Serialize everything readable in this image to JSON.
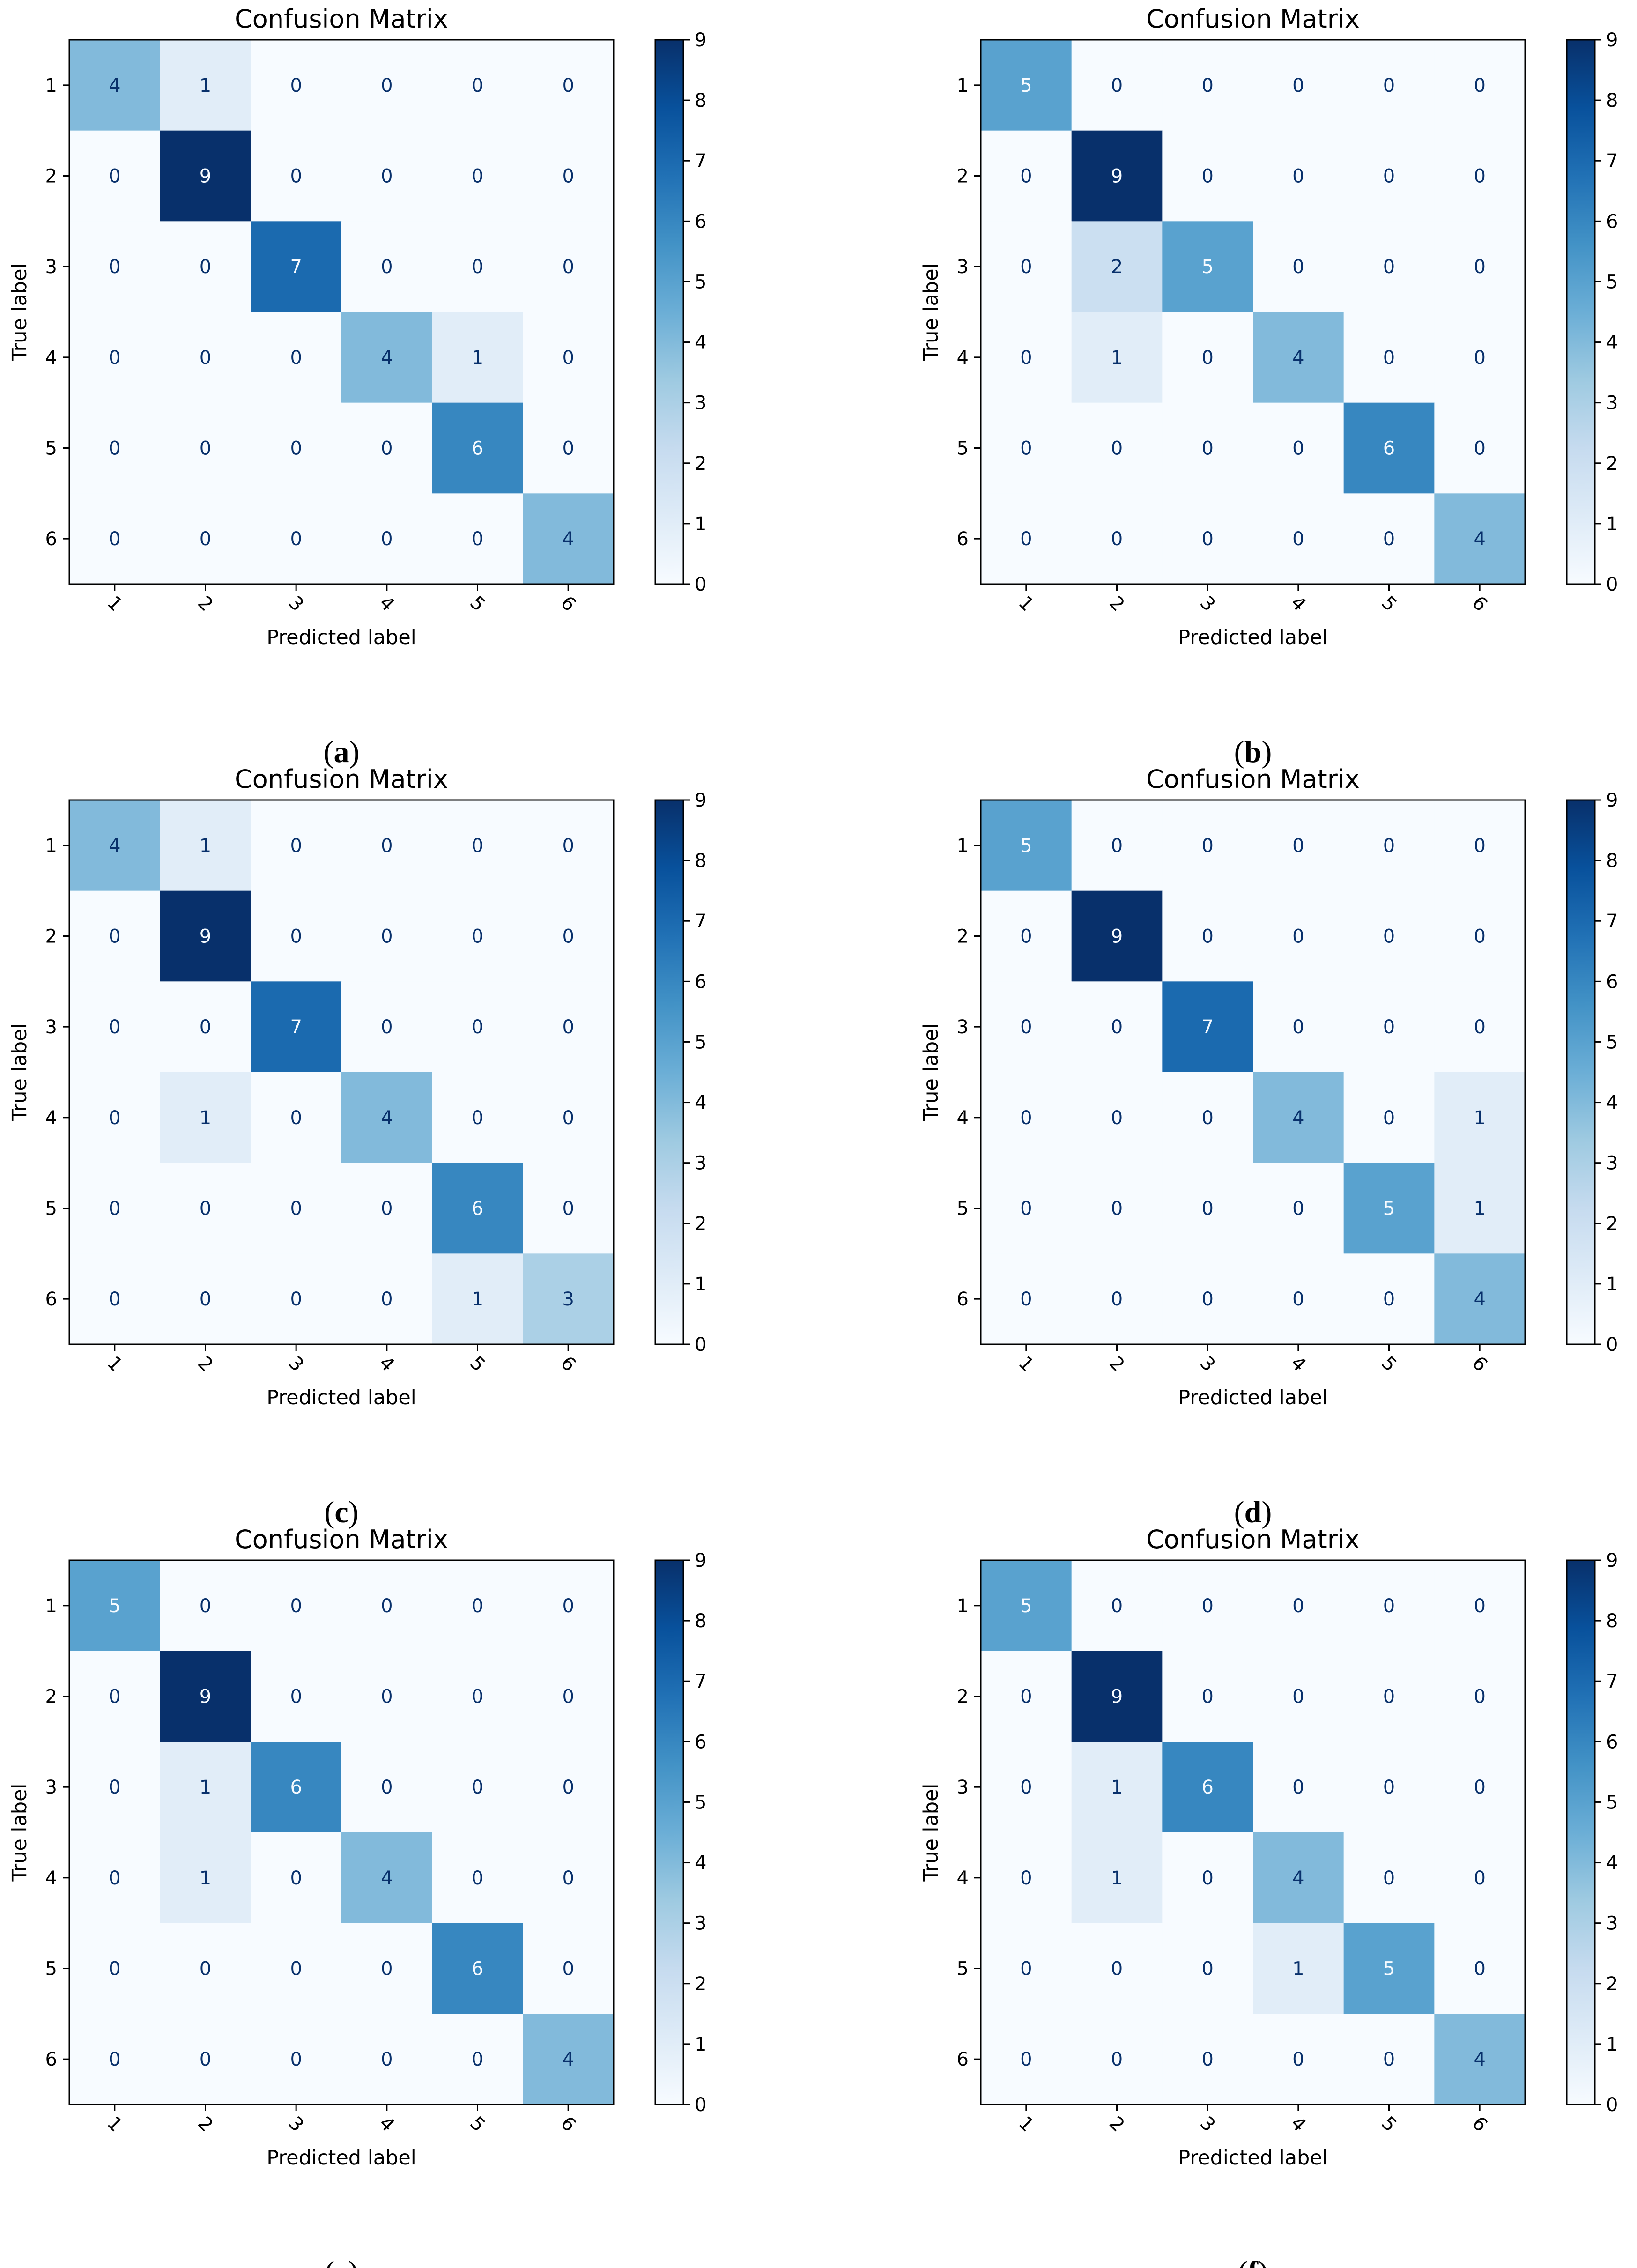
{
  "figure": {
    "colormap": "Blues",
    "colors": {
      "low": "#f7fbff",
      "high": "#08306b",
      "text_on_light": "#08306b",
      "text_on_dark": "#f7fbff"
    }
  },
  "chart_data": [
    {
      "panel": "a",
      "type": "heatmap",
      "title": "Confusion Matrix",
      "xlabel": "Predicted label",
      "ylabel": "True label",
      "x_categories": [
        "1",
        "2",
        "3",
        "4",
        "5",
        "6"
      ],
      "y_categories": [
        "1",
        "2",
        "3",
        "4",
        "5",
        "6"
      ],
      "values": [
        [
          4,
          1,
          0,
          0,
          0,
          0
        ],
        [
          0,
          9,
          0,
          0,
          0,
          0
        ],
        [
          0,
          0,
          7,
          0,
          0,
          0
        ],
        [
          0,
          0,
          0,
          4,
          1,
          0
        ],
        [
          0,
          0,
          0,
          0,
          6,
          0
        ],
        [
          0,
          0,
          0,
          0,
          0,
          4
        ]
      ],
      "colorbar": {
        "range": [
          0,
          9
        ],
        "ticks": [
          "0",
          "1",
          "2",
          "3",
          "4",
          "5",
          "6",
          "7",
          "8",
          "9"
        ]
      },
      "caption": {
        "open": "(",
        "letter": "a",
        "close": ")"
      }
    },
    {
      "panel": "b",
      "type": "heatmap",
      "title": "Confusion Matrix",
      "xlabel": "Predicted label",
      "ylabel": "True label",
      "x_categories": [
        "1",
        "2",
        "3",
        "4",
        "5",
        "6"
      ],
      "y_categories": [
        "1",
        "2",
        "3",
        "4",
        "5",
        "6"
      ],
      "values": [
        [
          5,
          0,
          0,
          0,
          0,
          0
        ],
        [
          0,
          9,
          0,
          0,
          0,
          0
        ],
        [
          0,
          2,
          5,
          0,
          0,
          0
        ],
        [
          0,
          1,
          0,
          4,
          0,
          0
        ],
        [
          0,
          0,
          0,
          0,
          6,
          0
        ],
        [
          0,
          0,
          0,
          0,
          0,
          4
        ]
      ],
      "colorbar": {
        "range": [
          0,
          9
        ],
        "ticks": [
          "0",
          "1",
          "2",
          "3",
          "4",
          "5",
          "6",
          "7",
          "8",
          "9"
        ]
      },
      "caption": {
        "open": "(",
        "letter": "b",
        "close": ")"
      }
    },
    {
      "panel": "c",
      "type": "heatmap",
      "title": "Confusion Matrix",
      "xlabel": "Predicted label",
      "ylabel": "True label",
      "x_categories": [
        "1",
        "2",
        "3",
        "4",
        "5",
        "6"
      ],
      "y_categories": [
        "1",
        "2",
        "3",
        "4",
        "5",
        "6"
      ],
      "values": [
        [
          4,
          1,
          0,
          0,
          0,
          0
        ],
        [
          0,
          9,
          0,
          0,
          0,
          0
        ],
        [
          0,
          0,
          7,
          0,
          0,
          0
        ],
        [
          0,
          1,
          0,
          4,
          0,
          0
        ],
        [
          0,
          0,
          0,
          0,
          6,
          0
        ],
        [
          0,
          0,
          0,
          0,
          1,
          3
        ]
      ],
      "colorbar": {
        "range": [
          0,
          9
        ],
        "ticks": [
          "0",
          "1",
          "2",
          "3",
          "4",
          "5",
          "6",
          "7",
          "8",
          "9"
        ]
      },
      "caption": {
        "open": "(",
        "letter": "c",
        "close": ")"
      }
    },
    {
      "panel": "d",
      "type": "heatmap",
      "title": "Confusion Matrix",
      "xlabel": "Predicted label",
      "ylabel": "True label",
      "x_categories": [
        "1",
        "2",
        "3",
        "4",
        "5",
        "6"
      ],
      "y_categories": [
        "1",
        "2",
        "3",
        "4",
        "5",
        "6"
      ],
      "values": [
        [
          5,
          0,
          0,
          0,
          0,
          0
        ],
        [
          0,
          9,
          0,
          0,
          0,
          0
        ],
        [
          0,
          0,
          7,
          0,
          0,
          0
        ],
        [
          0,
          0,
          0,
          4,
          0,
          1
        ],
        [
          0,
          0,
          0,
          0,
          5,
          1
        ],
        [
          0,
          0,
          0,
          0,
          0,
          4
        ]
      ],
      "colorbar": {
        "range": [
          0,
          9
        ],
        "ticks": [
          "0",
          "1",
          "2",
          "3",
          "4",
          "5",
          "6",
          "7",
          "8",
          "9"
        ]
      },
      "caption": {
        "open": "(",
        "letter": "d",
        "close": ")"
      }
    },
    {
      "panel": "e",
      "type": "heatmap",
      "title": "Confusion Matrix",
      "xlabel": "Predicted label",
      "ylabel": "True label",
      "x_categories": [
        "1",
        "2",
        "3",
        "4",
        "5",
        "6"
      ],
      "y_categories": [
        "1",
        "2",
        "3",
        "4",
        "5",
        "6"
      ],
      "values": [
        [
          5,
          0,
          0,
          0,
          0,
          0
        ],
        [
          0,
          9,
          0,
          0,
          0,
          0
        ],
        [
          0,
          1,
          6,
          0,
          0,
          0
        ],
        [
          0,
          1,
          0,
          4,
          0,
          0
        ],
        [
          0,
          0,
          0,
          0,
          6,
          0
        ],
        [
          0,
          0,
          0,
          0,
          0,
          4
        ]
      ],
      "colorbar": {
        "range": [
          0,
          9
        ],
        "ticks": [
          "0",
          "1",
          "2",
          "3",
          "4",
          "5",
          "6",
          "7",
          "8",
          "9"
        ]
      },
      "caption": {
        "open": "(",
        "letter": "e",
        "close": ")"
      }
    },
    {
      "panel": "f",
      "type": "heatmap",
      "title": "Confusion Matrix",
      "xlabel": "Predicted label",
      "ylabel": "True label",
      "x_categories": [
        "1",
        "2",
        "3",
        "4",
        "5",
        "6"
      ],
      "y_categories": [
        "1",
        "2",
        "3",
        "4",
        "5",
        "6"
      ],
      "values": [
        [
          5,
          0,
          0,
          0,
          0,
          0
        ],
        [
          0,
          9,
          0,
          0,
          0,
          0
        ],
        [
          0,
          1,
          6,
          0,
          0,
          0
        ],
        [
          0,
          1,
          0,
          4,
          0,
          0
        ],
        [
          0,
          0,
          0,
          1,
          5,
          0
        ],
        [
          0,
          0,
          0,
          0,
          0,
          4
        ]
      ],
      "colorbar": {
        "range": [
          0,
          9
        ],
        "ticks": [
          "0",
          "1",
          "2",
          "3",
          "4",
          "5",
          "6",
          "7",
          "8",
          "9"
        ]
      },
      "caption": {
        "open": "(",
        "letter": "f",
        "close": ")"
      }
    }
  ]
}
